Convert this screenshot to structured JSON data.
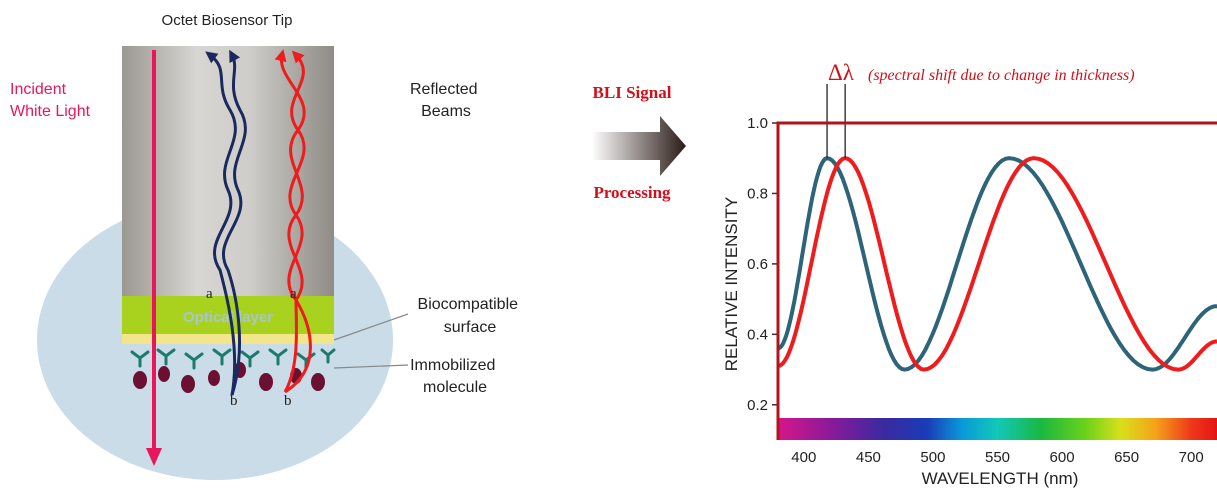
{
  "title": "Octet Biosensor Tip",
  "incident_label": [
    "Incident",
    "White Light"
  ],
  "reflected_label": [
    "Reflected",
    "Beams"
  ],
  "optical_layer_label": "Optical layer",
  "point_a": "a",
  "point_b": "b",
  "biocompatible_label": [
    "Biocompatible",
    "surface"
  ],
  "immobilized_label": [
    "Immobilized",
    "molecule"
  ],
  "bli_signal_label": "BLI Signal",
  "processing_label": "Processing",
  "delta_symbol": "Δλ",
  "delta_note": "(spectral shift due to change in thickness)",
  "colors": {
    "incident": "#e8175d",
    "red_beam": "#ee1c1c",
    "blue_beam": "#1b2a5e",
    "teal_curve": "#2e6479",
    "frame": "#b3121a",
    "label_red": "#d0101a",
    "optical_layer": "#a8d21e",
    "circle": "#c9dce8"
  },
  "chart_data": {
    "type": "line",
    "xlabel": "WAVELENGTH (nm)",
    "ylabel": "RELATIVE INTENSITY",
    "xlim": [
      380,
      720
    ],
    "ylim": [
      0.1,
      1.0
    ],
    "x_ticks": [
      400,
      450,
      500,
      550,
      600,
      650,
      700
    ],
    "y_ticks": [
      0.2,
      0.4,
      0.6,
      0.8,
      1.0
    ],
    "y_tick_labels": [
      "0.2",
      "0.4",
      "0.6",
      "0.8",
      "1.0"
    ],
    "series": [
      {
        "color": "#2e6479",
        "x": [
          380,
          418,
          478,
          559,
          670,
          720
        ],
        "y": [
          0.36,
          0.9,
          0.3,
          0.9,
          0.3,
          0.48
        ]
      },
      {
        "color": "#ee1c1c",
        "x": [
          380,
          432,
          493,
          578,
          690,
          720
        ],
        "y": [
          0.31,
          0.9,
          0.3,
          0.9,
          0.3,
          0.38
        ]
      }
    ],
    "peak_markers_x": [
      418,
      432
    ]
  }
}
